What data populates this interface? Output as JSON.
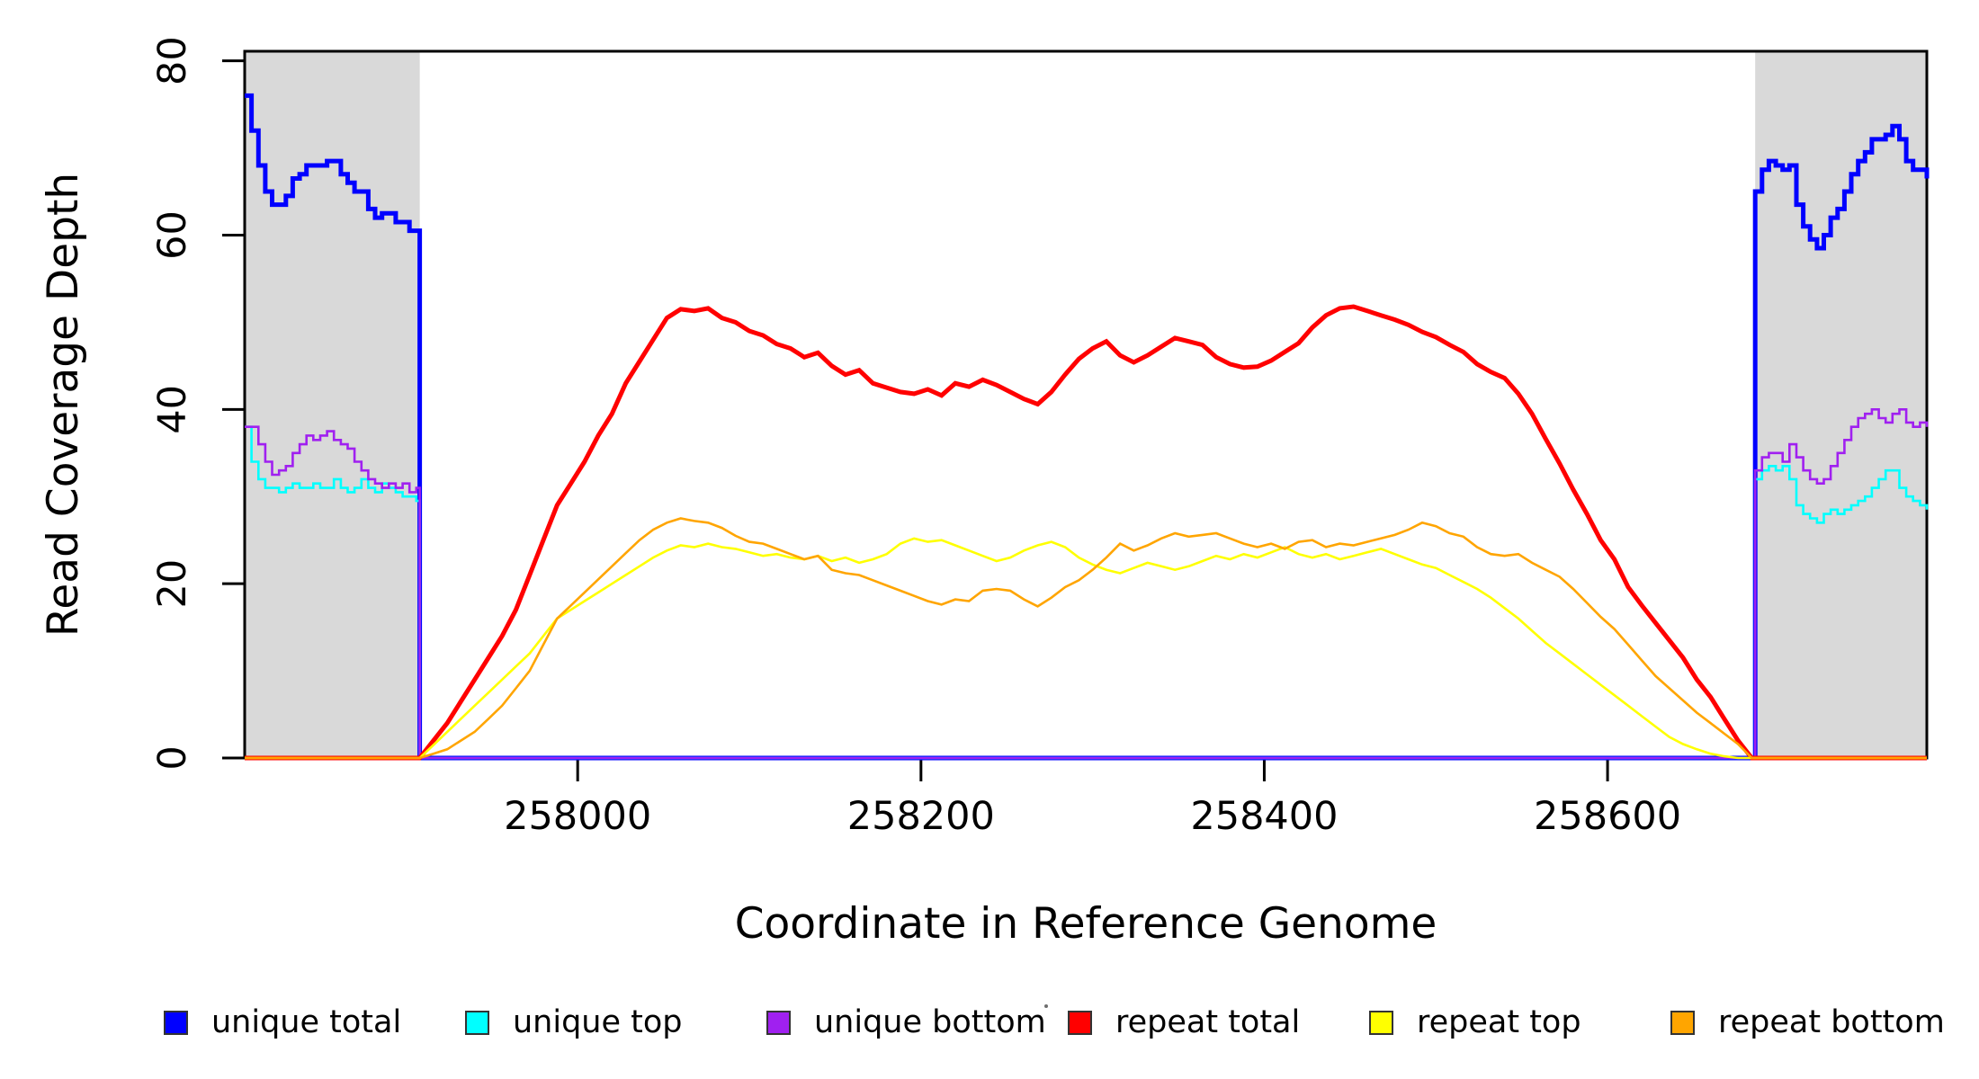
{
  "chart_data": {
    "type": "line",
    "title": "",
    "xlabel": "Coordinate in Reference Genome",
    "ylabel": "Read Coverage Depth",
    "xlim": [
      257806,
      258786
    ],
    "ylim": [
      0,
      81.1
    ],
    "x_ticks": [
      258000,
      258200,
      258400,
      258600
    ],
    "y_ticks": [
      0,
      20,
      40,
      60,
      80
    ],
    "grid": false,
    "legend_position": "bottom",
    "background": "#FFFFFF",
    "frame_color": "#000000",
    "shaded_regions": {
      "color": "#D9D9D9",
      "x_ranges": [
        [
          257806,
          257908
        ],
        [
          258686,
          258786
        ]
      ]
    },
    "series": [
      {
        "name": "unique total",
        "color": "#0000FF",
        "width": 5,
        "mode": "step",
        "segments": [
          {
            "x0": 257806,
            "dx": 4,
            "values": [
              76,
              72,
              68,
              65,
              63.5,
              63.5,
              64.5,
              66.5,
              67,
              68,
              68,
              68,
              68.5,
              68.5,
              67,
              66,
              65,
              65,
              63,
              62,
              62.5,
              62.5,
              61.5,
              61.5,
              60.5,
              60.5
            ]
          },
          {
            "x0": 257908,
            "dx": 778,
            "values": [
              0,
              0
            ]
          },
          {
            "x0": 258686,
            "dx": 4,
            "values": [
              65,
              67.5,
              68.5,
              68,
              67.5,
              68,
              63.5,
              61,
              59.5,
              58.5,
              60,
              62,
              63,
              65,
              67,
              68.5,
              69.5,
              71,
              71,
              71.5,
              72.5,
              71,
              68.5,
              67.5,
              67.5,
              66.5
            ]
          }
        ]
      },
      {
        "name": "unique top",
        "color": "#00FFFF",
        "width": 2.6,
        "mode": "step",
        "segments": [
          {
            "x0": 257806,
            "dx": 4,
            "values": [
              38,
              34,
              32,
              31,
              31,
              30.5,
              31,
              31.5,
              31,
              31,
              31.5,
              31,
              31,
              32,
              31,
              30.5,
              31,
              32,
              31,
              30.5,
              31.5,
              31,
              30.5,
              30,
              30,
              29.5
            ]
          },
          {
            "x0": 257908,
            "dx": 778,
            "values": [
              0,
              0
            ]
          },
          {
            "x0": 258686,
            "dx": 4,
            "values": [
              32,
              33,
              33.5,
              33,
              33.5,
              32,
              29,
              28,
              27.5,
              27,
              28,
              28.5,
              28,
              28.5,
              29,
              29.5,
              30,
              31,
              32,
              33,
              33,
              31,
              30,
              29.5,
              29,
              28.5
            ]
          }
        ]
      },
      {
        "name": "unique bottom",
        "color": "#A020F0",
        "width": 2.6,
        "mode": "step",
        "segments": [
          {
            "x0": 257806,
            "dx": 4,
            "values": [
              38,
              38,
              36,
              34,
              32.5,
              33,
              33.5,
              35,
              36,
              37,
              36.5,
              37,
              37.5,
              36.5,
              36,
              35.5,
              34,
              33,
              32,
              31.5,
              31,
              31.5,
              31,
              31.5,
              30.5,
              31
            ]
          },
          {
            "x0": 257908,
            "dx": 778,
            "values": [
              0,
              0
            ]
          },
          {
            "x0": 258686,
            "dx": 4,
            "values": [
              33,
              34.5,
              35,
              35,
              34,
              36,
              34.5,
              33,
              32,
              31.5,
              32,
              33.5,
              35,
              36.5,
              38,
              39,
              39.5,
              40,
              39,
              38.5,
              39.5,
              40,
              38.5,
              38,
              38.5,
              38
            ]
          }
        ]
      },
      {
        "name": "repeat total",
        "color": "#FF0000",
        "width": 5,
        "mode": "line",
        "segments": [
          {
            "x0": 257806,
            "dx": 102,
            "values": [
              0,
              0
            ]
          },
          {
            "x0": 257908,
            "dx": 8,
            "values": [
              0,
              2,
              4,
              6.5,
              9,
              11.5,
              14,
              17,
              21,
              25,
              29,
              31.5,
              34,
              37,
              39.5,
              43,
              45.5,
              48,
              50.5,
              51.5,
              51.3,
              51.6,
              50.5,
              50,
              49,
              48.5,
              47.5,
              47,
              46,
              46.5,
              45,
              44,
              44.5,
              43,
              42.5,
              42,
              41.8,
              42.3,
              41.6,
              43,
              42.6,
              43.4,
              42.8,
              42,
              41.2,
              40.6,
              42,
              44,
              45.8,
              47,
              47.8,
              46.2,
              45.4,
              46.2,
              47.2,
              48.2,
              47.8,
              47.4,
              46,
              45.2,
              44.8,
              44.9,
              45.6,
              46.6,
              47.6,
              49.4,
              50.8,
              51.6,
              51.8,
              51.3,
              50.8,
              50.3,
              49.7,
              48.9,
              48.3,
              47.4,
              46.6,
              45.2,
              44.3,
              43.6,
              41.8,
              39.5,
              36.6,
              33.8,
              30.8,
              28,
              25,
              22.8,
              19.6,
              17.5,
              15.5,
              13.5,
              11.5,
              9,
              7,
              4.5,
              2,
              0
            ]
          },
          {
            "x0": 258684,
            "dx": 102,
            "values": [
              0,
              0
            ]
          }
        ]
      },
      {
        "name": "repeat top",
        "color": "#FFFF00",
        "width": 2.6,
        "mode": "line",
        "segments": [
          {
            "x0": 257806,
            "dx": 102,
            "values": [
              0,
              0
            ]
          },
          {
            "x0": 257908,
            "dx": 8,
            "values": [
              0,
              1.5,
              3,
              4.5,
              6,
              7.5,
              9,
              10.5,
              12,
              14,
              16,
              17,
              18,
              19,
              20,
              21,
              22,
              23,
              23.8,
              24.4,
              24.2,
              24.6,
              24.2,
              24,
              23.6,
              23.2,
              23.4,
              23,
              22.8,
              23.2,
              22.6,
              23,
              22.4,
              22.8,
              23.4,
              24.6,
              25.2,
              24.8,
              25,
              24.4,
              23.8,
              23.2,
              22.6,
              23,
              23.8,
              24.4,
              24.8,
              24.2,
              23,
              22.2,
              21.6,
              21.2,
              21.8,
              22.4,
              22,
              21.6,
              22,
              22.6,
              23.2,
              22.8,
              23.4,
              23,
              23.6,
              24.2,
              23.4,
              23,
              23.4,
              22.8,
              23.2,
              23.6,
              24,
              23.4,
              22.8,
              22.2,
              21.8,
              21,
              20.2,
              19.4,
              18.4,
              17.2,
              16,
              14.6,
              13.2,
              12,
              10.8,
              9.6,
              8.4,
              7.2,
              6,
              4.8,
              3.6,
              2.4,
              1.6,
              1,
              0.5,
              0.2,
              0,
              0
            ]
          },
          {
            "x0": 258684,
            "dx": 102,
            "values": [
              0,
              0
            ]
          }
        ]
      },
      {
        "name": "repeat bottom",
        "color": "#FFA500",
        "width": 2.6,
        "mode": "line",
        "segments": [
          {
            "x0": 257806,
            "dx": 102,
            "values": [
              0,
              0
            ]
          },
          {
            "x0": 257908,
            "dx": 8,
            "values": [
              0,
              0.5,
              1,
              2,
              3,
              4.5,
              6,
              8,
              10,
              13,
              16,
              17.5,
              19,
              20.5,
              22,
              23.5,
              25,
              26.2,
              27,
              27.5,
              27.2,
              27,
              26.4,
              25.5,
              24.8,
              24.6,
              24,
              23.4,
              22.8,
              23.2,
              21.6,
              21.2,
              21,
              20.4,
              19.8,
              19.2,
              18.6,
              18,
              17.6,
              18.2,
              18,
              19.2,
              19.4,
              19.2,
              18.2,
              17.4,
              18.4,
              19.6,
              20.4,
              21.6,
              23,
              24.6,
              23.8,
              24.4,
              25.2,
              25.8,
              25.4,
              25.6,
              25.8,
              25.2,
              24.6,
              24.2,
              24.6,
              24,
              24.8,
              25,
              24.2,
              24.6,
              24.4,
              24.8,
              25.2,
              25.6,
              26.2,
              27,
              26.6,
              25.8,
              25.4,
              24.2,
              23.4,
              23.2,
              23.4,
              22.4,
              21.6,
              20.8,
              19.4,
              17.8,
              16.2,
              14.8,
              13,
              11.2,
              9.4,
              8,
              6.6,
              5.2,
              4,
              2.8,
              1.6,
              0
            ]
          },
          {
            "x0": 258684,
            "dx": 102,
            "values": [
              0,
              0
            ]
          }
        ]
      }
    ]
  }
}
